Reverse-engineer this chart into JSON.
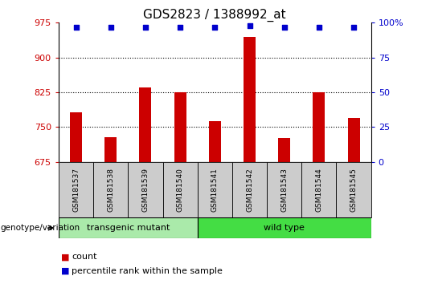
{
  "title": "GDS2823 / 1388992_at",
  "samples": [
    "GSM181537",
    "GSM181538",
    "GSM181539",
    "GSM181540",
    "GSM181541",
    "GSM181542",
    "GSM181543",
    "GSM181544",
    "GSM181545"
  ],
  "counts": [
    782,
    728,
    835,
    825,
    762,
    945,
    726,
    825,
    770
  ],
  "percentile_ranks": [
    97,
    97,
    97,
    97,
    97,
    98,
    97,
    97,
    97
  ],
  "ylim_left": [
    675,
    975
  ],
  "yticks_left": [
    675,
    750,
    825,
    900,
    975
  ],
  "ylim_right": [
    0,
    100
  ],
  "yticks_right": [
    0,
    25,
    50,
    75,
    100
  ],
  "bar_color": "#cc0000",
  "dot_color": "#0000cc",
  "grid_lines": [
    750,
    825,
    900
  ],
  "transgenic_samples": 4,
  "transgenic_label": "transgenic mutant",
  "wildtype_label": "wild type",
  "transgenic_color": "#aaeaaa",
  "wildtype_color": "#44dd44",
  "legend_count_label": "count",
  "legend_percentile_label": "percentile rank within the sample",
  "genotype_label": "genotype/variation",
  "bar_color_hex": "#cc0000",
  "dot_color_hex": "#0000cc",
  "tick_label_bg": "#cccccc",
  "title_fontsize": 11,
  "bar_width": 0.35
}
